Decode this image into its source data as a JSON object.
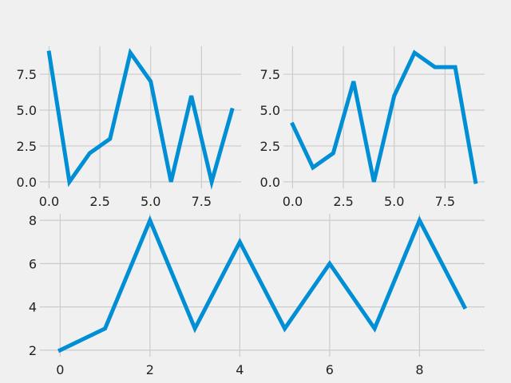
{
  "figure": {
    "background": "#f0f0f0",
    "style": "fivethirtyeight",
    "grid": true,
    "grid_color": "#cbcbcb",
    "line_color": "#008fd5"
  },
  "chart_data": [
    {
      "type": "line",
      "position": "top-left",
      "x": [
        0,
        1,
        2,
        3,
        4,
        5,
        6,
        7,
        8,
        9
      ],
      "series": [
        {
          "values": [
            9,
            0,
            2,
            3,
            9,
            7,
            0,
            6,
            0,
            5
          ]
        }
      ],
      "xlim": [
        -0.45,
        9.45
      ],
      "ylim": [
        -0.45,
        9.45
      ],
      "xticks": [
        0,
        2.5,
        5,
        7.5
      ],
      "xtick_labels": [
        "0.0",
        "2.5",
        "5.0",
        "7.5"
      ],
      "yticks": [
        0,
        2.5,
        5,
        7.5
      ],
      "ytick_labels": [
        "0.0",
        "2.5",
        "5.0",
        "7.5"
      ],
      "title": "",
      "xlabel": "",
      "ylabel": "",
      "grid": true
    },
    {
      "type": "line",
      "position": "top-right",
      "x": [
        0,
        1,
        2,
        3,
        4,
        5,
        6,
        7,
        8,
        9
      ],
      "series": [
        {
          "values": [
            4,
            1,
            2,
            7,
            0,
            6,
            9,
            8,
            8,
            0
          ]
        }
      ],
      "xlim": [
        -0.45,
        9.45
      ],
      "ylim": [
        -0.45,
        9.45
      ],
      "xticks": [
        0,
        2.5,
        5,
        7.5
      ],
      "xtick_labels": [
        "0.0",
        "2.5",
        "5.0",
        "7.5"
      ],
      "yticks": [
        0,
        2.5,
        5,
        7.5
      ],
      "ytick_labels": [
        "0.0",
        "2.5",
        "5.0",
        "7.5"
      ],
      "title": "",
      "xlabel": "",
      "ylabel": "",
      "grid": true
    },
    {
      "type": "line",
      "position": "bottom",
      "x": [
        0,
        1,
        2,
        3,
        4,
        5,
        6,
        7,
        8,
        9
      ],
      "series": [
        {
          "values": [
            2,
            3,
            8,
            3,
            7,
            3,
            6,
            3,
            8,
            4
          ]
        }
      ],
      "xlim": [
        -0.45,
        9.45
      ],
      "ylim": [
        1.7,
        8.3
      ],
      "xticks": [
        0,
        2,
        4,
        6,
        8
      ],
      "xtick_labels": [
        "0",
        "2",
        "4",
        "6",
        "8"
      ],
      "yticks": [
        2,
        4,
        6,
        8
      ],
      "ytick_labels": [
        "2",
        "4",
        "6",
        "8"
      ],
      "title": "",
      "xlabel": "",
      "ylabel": "",
      "grid": true
    }
  ]
}
